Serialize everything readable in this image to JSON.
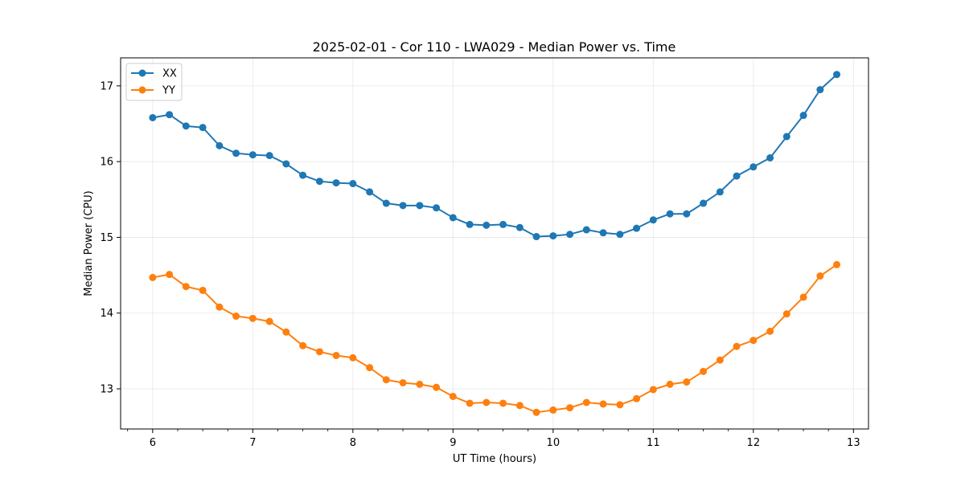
{
  "chart_data": {
    "type": "line",
    "title": "2025-02-01 - Cor 110 - LWA029 - Median Power vs. Time",
    "xlabel": "UT Time (hours)",
    "ylabel": "Median Power (CPU)",
    "xlim": [
      5.68,
      13.15
    ],
    "ylim": [
      12.47,
      17.37
    ],
    "xticks": [
      6,
      7,
      8,
      9,
      10,
      11,
      12,
      13
    ],
    "yticks": [
      13,
      14,
      15,
      16,
      17
    ],
    "x_minor_step": 0.25,
    "grid": true,
    "legend_position": "upper-left",
    "x": [
      6.0,
      6.167,
      6.333,
      6.5,
      6.667,
      6.833,
      7.0,
      7.167,
      7.333,
      7.5,
      7.667,
      7.833,
      8.0,
      8.167,
      8.333,
      8.5,
      8.667,
      8.833,
      9.0,
      9.167,
      9.333,
      9.5,
      9.667,
      9.833,
      10.0,
      10.167,
      10.333,
      10.5,
      10.667,
      10.833,
      11.0,
      11.167,
      11.333,
      11.5,
      11.667,
      11.833,
      12.0,
      12.167,
      12.333,
      12.5,
      12.667,
      12.833
    ],
    "series": [
      {
        "name": "XX",
        "color": "#1f77b4",
        "values": [
          16.58,
          16.62,
          16.47,
          16.45,
          16.21,
          16.11,
          16.09,
          16.08,
          15.97,
          15.82,
          15.74,
          15.72,
          15.71,
          15.6,
          15.45,
          15.42,
          15.42,
          15.39,
          15.26,
          15.17,
          15.16,
          15.17,
          15.13,
          15.01,
          15.02,
          15.04,
          15.1,
          15.06,
          15.04,
          15.12,
          15.23,
          15.31,
          15.31,
          15.45,
          15.6,
          15.81,
          15.93,
          16.05,
          16.33,
          16.61,
          16.95,
          17.15
        ]
      },
      {
        "name": "YY",
        "color": "#ff7f0e",
        "values": [
          14.47,
          14.51,
          14.35,
          14.3,
          14.08,
          13.96,
          13.93,
          13.89,
          13.75,
          13.57,
          13.49,
          13.44,
          13.41,
          13.28,
          13.12,
          13.08,
          13.06,
          13.02,
          12.9,
          12.81,
          12.82,
          12.81,
          12.78,
          12.69,
          12.72,
          12.75,
          12.82,
          12.8,
          12.79,
          12.87,
          12.99,
          13.06,
          13.09,
          13.23,
          13.38,
          13.56,
          13.64,
          13.76,
          13.99,
          14.21,
          14.49,
          14.64
        ]
      }
    ]
  }
}
